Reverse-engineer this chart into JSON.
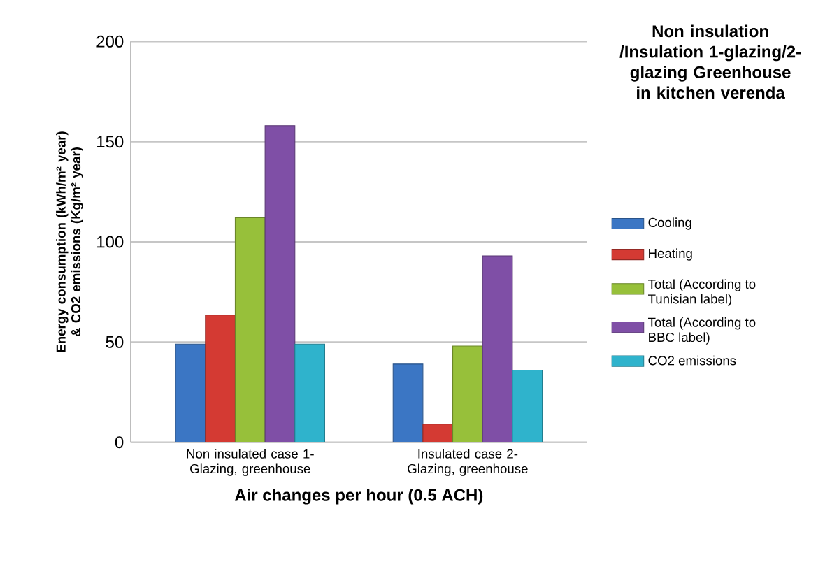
{
  "chart_data": {
    "type": "bar",
    "title": "Non insulation /Insulation 1-glazing/2-glazing Greenhouse in kitchen verenda",
    "xlabel": "Air changes per hour (0.5 ACH)",
    "ylabel": "Energy consumption (kWh/m² year) & CO2 emissions (Kg/m² year)",
    "categories": [
      "Non insulated case 1-Glazing, greenhouse",
      "Insulated case 2-Glazing, greenhouse"
    ],
    "series": [
      {
        "name": "Cooling",
        "color": "#3b76c4",
        "values": [
          49,
          39
        ]
      },
      {
        "name": "Heating",
        "color": "#d43a33",
        "values": [
          63.5,
          9
        ]
      },
      {
        "name": "Total (According to Tunisian label)",
        "color": "#97c03a",
        "values": [
          112,
          48
        ]
      },
      {
        "name": "Total (According to BBC label)",
        "color": "#7f4fa6",
        "values": [
          158,
          93
        ]
      },
      {
        "name": "CO2 emissions",
        "color": "#2fb3cc",
        "values": [
          49,
          36
        ]
      }
    ],
    "ylim": [
      0,
      200
    ],
    "yticks": [
      0,
      50,
      100,
      150,
      200
    ],
    "grid": "y",
    "legend": "right"
  }
}
